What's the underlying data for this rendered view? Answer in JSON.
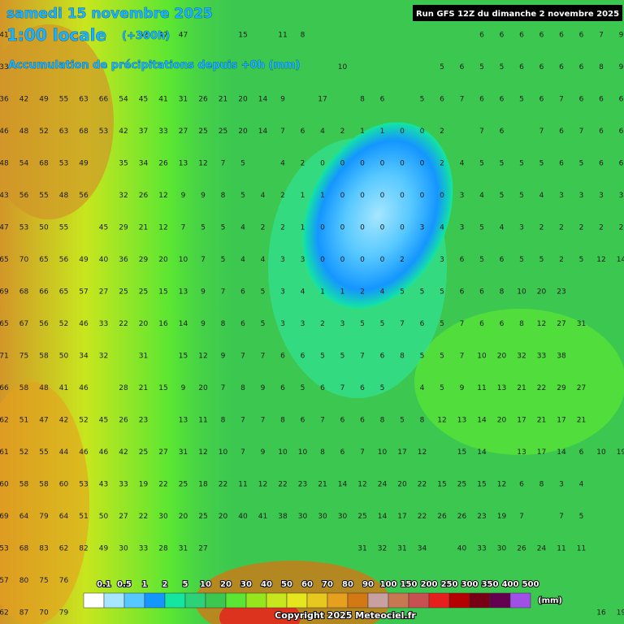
{
  "header": {
    "date": "samedi 15 novembre 2025",
    "time": "1:00 locale",
    "lead": "(+300h)",
    "subtitle": "Accumulation de précipitations depuis +0h (mm)",
    "run": "Run GFS 12Z du dimanche 2 novembre 2025"
  },
  "grid": {
    "rows": [
      [
        41,
        null,
        null,
        null,
        null,
        null,
        null,
        62,
        47,
        47,
        null,
        null,
        15,
        null,
        11,
        8,
        null,
        null,
        null,
        null,
        null,
        null,
        null,
        null,
        6,
        6,
        6,
        6,
        6,
        6,
        7,
        9
      ],
      [
        33,
        null,
        null,
        null,
        null,
        null,
        null,
        null,
        null,
        null,
        null,
        null,
        null,
        null,
        null,
        null,
        null,
        10,
        null,
        null,
        null,
        null,
        5,
        6,
        5,
        5,
        6,
        6,
        6,
        6,
        8,
        9
      ],
      [
        36,
        42,
        49,
        55,
        63,
        66,
        54,
        45,
        41,
        31,
        26,
        21,
        20,
        14,
        9,
        null,
        17,
        null,
        8,
        6,
        null,
        5,
        6,
        7,
        6,
        6,
        5,
        6,
        7,
        6,
        6,
        6
      ],
      [
        46,
        48,
        52,
        63,
        68,
        53,
        42,
        37,
        33,
        27,
        25,
        25,
        20,
        14,
        7,
        6,
        4,
        2,
        1,
        1,
        0,
        0,
        2,
        null,
        7,
        6,
        null,
        7,
        6,
        7,
        6,
        6
      ],
      [
        48,
        54,
        68,
        53,
        49,
        null,
        35,
        34,
        26,
        13,
        12,
        7,
        5,
        null,
        4,
        2,
        0,
        0,
        0,
        0,
        0,
        0,
        2,
        4,
        5,
        5,
        5,
        5,
        6,
        5,
        6,
        6
      ],
      [
        43,
        56,
        55,
        48,
        56,
        null,
        32,
        26,
        12,
        9,
        9,
        8,
        5,
        4,
        2,
        1,
        1,
        0,
        0,
        0,
        0,
        0,
        0,
        3,
        4,
        5,
        5,
        4,
        3,
        3,
        3,
        3
      ],
      [
        47,
        53,
        50,
        55,
        null,
        45,
        29,
        21,
        12,
        7,
        5,
        5,
        4,
        2,
        2,
        1,
        0,
        0,
        0,
        0,
        0,
        3,
        4,
        3,
        5,
        4,
        3,
        2,
        2,
        2,
        2,
        2
      ],
      [
        65,
        70,
        65,
        56,
        49,
        40,
        36,
        29,
        20,
        10,
        7,
        5,
        4,
        4,
        3,
        3,
        0,
        0,
        0,
        0,
        2,
        null,
        3,
        6,
        5,
        6,
        5,
        5,
        2,
        5,
        12,
        14
      ],
      [
        69,
        68,
        66,
        65,
        57,
        27,
        25,
        25,
        15,
        13,
        9,
        7,
        6,
        5,
        3,
        4,
        1,
        1,
        2,
        4,
        5,
        5,
        5,
        6,
        6,
        8,
        10,
        20,
        23,
        null,
        null,
        null
      ],
      [
        65,
        67,
        56,
        52,
        46,
        33,
        22,
        20,
        16,
        14,
        9,
        8,
        6,
        5,
        3,
        3,
        2,
        3,
        5,
        5,
        7,
        6,
        5,
        7,
        6,
        6,
        8,
        12,
        27,
        31,
        null,
        null
      ],
      [
        71,
        75,
        58,
        50,
        34,
        32,
        null,
        31,
        null,
        15,
        12,
        9,
        7,
        7,
        6,
        6,
        5,
        5,
        7,
        6,
        8,
        5,
        5,
        7,
        10,
        20,
        32,
        33,
        38,
        null,
        null,
        null
      ],
      [
        66,
        58,
        48,
        41,
        46,
        null,
        28,
        21,
        15,
        9,
        20,
        7,
        8,
        9,
        6,
        5,
        6,
        7,
        6,
        5,
        null,
        4,
        5,
        9,
        11,
        13,
        21,
        22,
        29,
        27,
        null,
        null
      ],
      [
        62,
        51,
        47,
        42,
        52,
        45,
        26,
        23,
        null,
        13,
        11,
        8,
        7,
        7,
        8,
        6,
        7,
        6,
        6,
        8,
        5,
        8,
        12,
        13,
        14,
        20,
        17,
        21,
        17,
        21,
        null,
        null
      ],
      [
        61,
        52,
        55,
        44,
        46,
        46,
        42,
        25,
        27,
        31,
        12,
        10,
        7,
        9,
        10,
        10,
        8,
        6,
        7,
        10,
        17,
        12,
        null,
        15,
        14,
        null,
        13,
        17,
        14,
        6,
        10,
        19
      ],
      [
        60,
        58,
        58,
        60,
        53,
        43,
        33,
        19,
        22,
        25,
        18,
        22,
        11,
        12,
        22,
        23,
        21,
        14,
        12,
        24,
        20,
        22,
        15,
        25,
        15,
        12,
        6,
        8,
        3,
        4,
        null,
        null
      ],
      [
        69,
        64,
        79,
        64,
        51,
        50,
        27,
        22,
        30,
        20,
        25,
        20,
        40,
        41,
        38,
        30,
        30,
        30,
        25,
        14,
        17,
        22,
        26,
        26,
        23,
        19,
        7,
        null,
        7,
        5,
        null,
        null
      ],
      [
        53,
        68,
        83,
        62,
        82,
        49,
        30,
        33,
        28,
        31,
        27,
        null,
        null,
        null,
        null,
        null,
        null,
        null,
        31,
        32,
        31,
        34,
        null,
        40,
        33,
        30,
        26,
        24,
        11,
        11,
        null,
        null
      ],
      [
        57,
        80,
        75,
        76,
        null,
        null,
        null,
        null,
        null,
        null,
        null,
        null,
        null,
        null,
        null,
        null,
        null,
        null,
        null,
        null,
        null,
        null,
        null,
        null,
        null,
        null,
        null,
        null,
        null,
        null,
        null,
        null
      ],
      [
        62,
        87,
        70,
        79,
        null,
        null,
        null,
        null,
        null,
        null,
        null,
        null,
        null,
        null,
        null,
        null,
        null,
        null,
        null,
        null,
        null,
        null,
        null,
        null,
        null,
        null,
        null,
        null,
        null,
        null,
        16,
        19
      ]
    ]
  },
  "legend": {
    "labels": [
      "0.1",
      "0.5",
      "1",
      "2",
      "5",
      "10",
      "20",
      "30",
      "40",
      "50",
      "60",
      "70",
      "80",
      "90",
      "100",
      "150",
      "200",
      "250",
      "300",
      "350",
      "400",
      "500"
    ],
    "colors": [
      "#ffffff",
      "#a6e6ff",
      "#56c8ff",
      "#1496ff",
      "#14e6a0",
      "#2dd278",
      "#3cc850",
      "#5ae632",
      "#96e61e",
      "#c8e61e",
      "#e6e61e",
      "#e6c81e",
      "#e6a01e",
      "#d27814",
      "#c8a0a0",
      "#c87850",
      "#c85050",
      "#e61e1e",
      "#b40000",
      "#780014",
      "#640050",
      "#a050e6"
    ],
    "unit": "(mm)"
  },
  "copyright": "Copyright 2025 Meteociel.fr"
}
